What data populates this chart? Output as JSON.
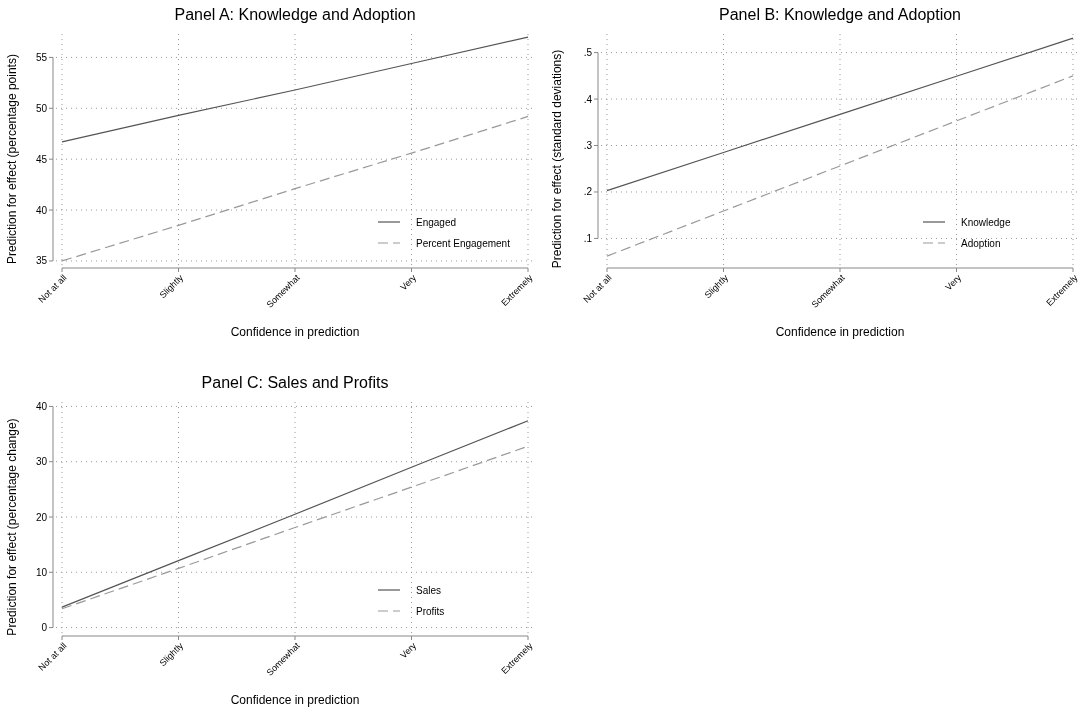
{
  "chart_data": [
    {
      "type": "line",
      "title": "Panel A: Knowledge and Adoption",
      "xlabel": "Confidence in prediction",
      "ylabel": "Prediction for effect (percentage points)",
      "categories": [
        "Not at all",
        "Slightly",
        "Somewhat",
        "Very",
        "Extremely"
      ],
      "ylim": [
        34.7,
        57.3
      ],
      "yticks": [
        35,
        40,
        45,
        50,
        55
      ],
      "grid": true,
      "legend": "bottom right",
      "series": [
        {
          "name": "Engaged",
          "color": "#555555",
          "line_style": "solid",
          "values": [
            46.7,
            49.3,
            51.8,
            54.4,
            57.0
          ]
        },
        {
          "name": "Percent Engagement",
          "color": "#999999",
          "line_style": "dashed",
          "values": [
            35.0,
            38.5,
            42.1,
            45.6,
            49.2
          ]
        }
      ]
    },
    {
      "type": "line",
      "title": "Panel B: Knowledge and Adoption",
      "xlabel": "Confidence in prediction",
      "ylabel": "Prediction for effect (standard deviations)",
      "categories": [
        "Not at all",
        "Slightly",
        "Somewhat",
        "Very",
        "Extremely"
      ],
      "ylim": [
        0.045,
        0.54
      ],
      "yticks": [
        {
          "value": 0.1,
          "label": ".1"
        },
        {
          "value": 0.2,
          "label": ".2"
        },
        {
          "value": 0.3,
          "label": ".3"
        },
        {
          "value": 0.4,
          "label": ".4"
        },
        {
          "value": 0.5,
          "label": ".5"
        }
      ],
      "grid": true,
      "legend": "bottom right",
      "series": [
        {
          "name": "Knowledge",
          "color": "#555555",
          "line_style": "solid",
          "values": [
            0.203,
            0.285,
            0.367,
            0.449,
            0.531
          ]
        },
        {
          "name": "Adoption",
          "color": "#999999",
          "line_style": "dashed",
          "values": [
            0.062,
            0.159,
            0.256,
            0.353,
            0.45
          ]
        }
      ]
    },
    {
      "type": "line",
      "title": "Panel C: Sales and Profits",
      "xlabel": "Confidence in prediction",
      "ylabel": "Prediction for effect (percentage change)",
      "categories": [
        "Not at all",
        "Slightly",
        "Somewhat",
        "Very",
        "Extremely"
      ],
      "ylim": [
        -0.8,
        40.8
      ],
      "yticks": [
        0,
        10,
        20,
        30,
        40
      ],
      "grid": true,
      "legend": "bottom right",
      "series": [
        {
          "name": "Sales",
          "color": "#555555",
          "line_style": "solid",
          "values": [
            3.7,
            12.1,
            20.5,
            29.0,
            37.4
          ]
        },
        {
          "name": "Profits",
          "color": "#999999",
          "line_style": "dashed",
          "values": [
            3.4,
            10.7,
            18.1,
            25.4,
            32.8
          ]
        }
      ]
    }
  ]
}
